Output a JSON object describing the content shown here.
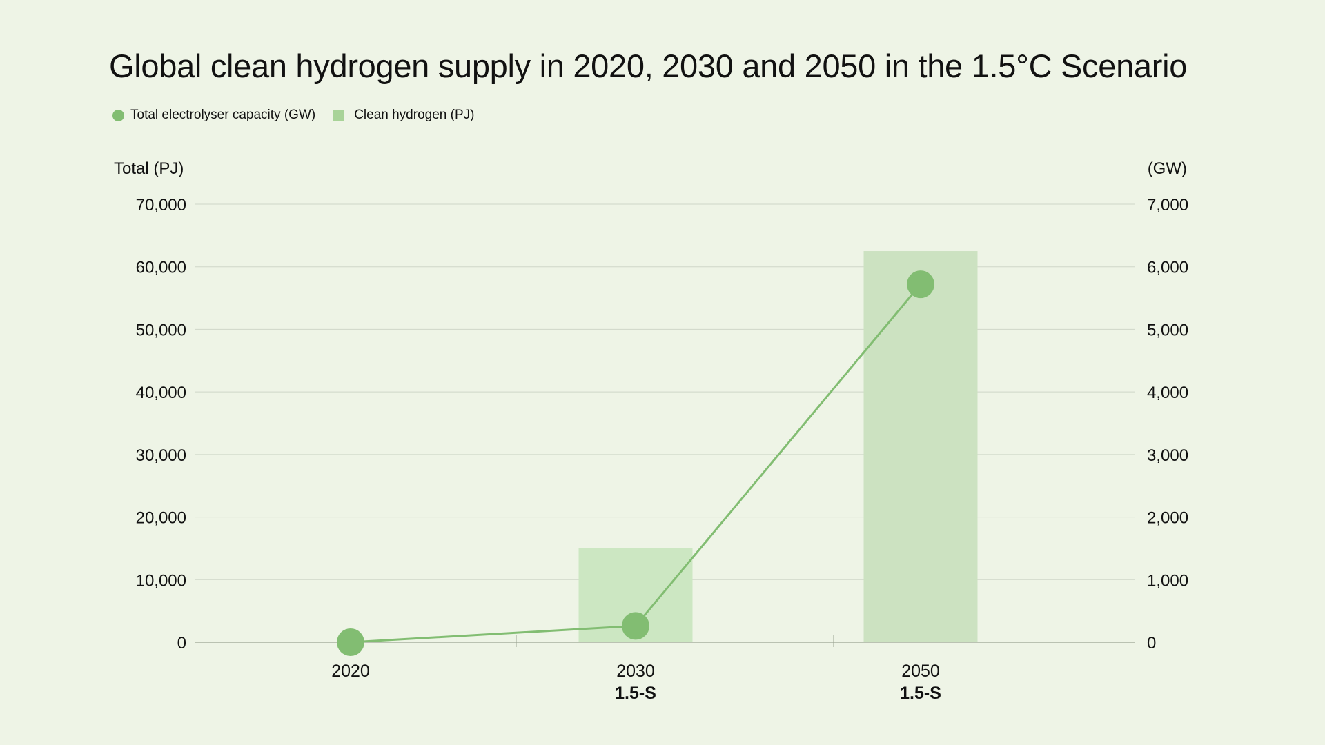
{
  "colors": {
    "background": "#eef4e6",
    "line": "#82bd72",
    "marker": "#82bd72",
    "bar_2030": "#cce7c2",
    "bar_2050": "#cce2c1",
    "legend_bar": "#a8d398",
    "grid": "#cfd6c8",
    "axis": "#9aa393"
  },
  "chart_data": {
    "type": "bar",
    "title": "Global clean hydrogen supply in 2020, 2030 and 2050 in the 1.5°C Scenario",
    "categories": [
      "2020",
      "2030",
      "2050"
    ],
    "category_sublabels": [
      "",
      "1.5-S",
      "1.5-S"
    ],
    "legend": {
      "position": "top-left",
      "items": [
        {
          "label": "Total electrolyser capacity (GW)",
          "marker": "circle"
        },
        {
          "label": "Clean hydrogen (PJ)",
          "marker": "square"
        }
      ]
    },
    "y_left": {
      "label": "Total (PJ)",
      "ylim": [
        0,
        70000
      ],
      "ticks": [
        0,
        10000,
        20000,
        30000,
        40000,
        50000,
        60000,
        70000
      ],
      "tick_labels": [
        "0",
        "10,000",
        "20,000",
        "30,000",
        "40,000",
        "50,000",
        "60,000",
        "70,000"
      ]
    },
    "y_right": {
      "label": "(GW)",
      "ylim": [
        0,
        7000
      ],
      "ticks": [
        0,
        1000,
        2000,
        3000,
        4000,
        5000,
        6000,
        7000
      ],
      "tick_labels": [
        "0",
        "1,000",
        "2,000",
        "3,000",
        "4,000",
        "5,000",
        "6,000",
        "7,000"
      ]
    },
    "grid": true,
    "series": [
      {
        "name": "Clean hydrogen (PJ)",
        "type": "bar",
        "axis": "left",
        "values": [
          0,
          15000,
          62500
        ]
      },
      {
        "name": "Total electrolyser capacity (GW)",
        "type": "line",
        "axis": "right",
        "values": [
          0.3,
          260,
          5720
        ]
      }
    ]
  }
}
